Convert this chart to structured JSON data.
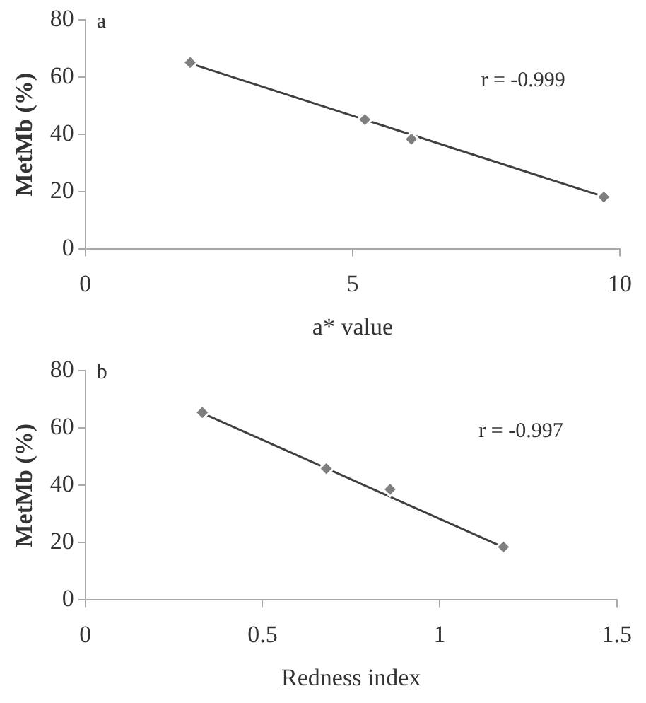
{
  "chart_data": [
    {
      "type": "scatter",
      "xlabel": "a* value",
      "ylabel": "MetMb (%)",
      "annotations": [
        "a",
        "r = -0.999"
      ],
      "xlim": [
        0,
        10
      ],
      "xticks": [
        0,
        5,
        10
      ],
      "ylim": [
        0,
        80
      ],
      "yticks": [
        0,
        20,
        40,
        60,
        80
      ],
      "grid": false,
      "legend": false,
      "series": [
        {
          "color": "#7f7f7f",
          "marker": "diamond",
          "x": [
            1.96,
            5.23,
            6.1,
            9.7
          ],
          "values": [
            65.1,
            45.2,
            38.4,
            18.2
          ]
        },
        {
          "type": "line",
          "color": "#404040",
          "marker": "none",
          "line_style": "solid",
          "x": [
            1.96,
            9.7
          ],
          "values": [
            64.8,
            18.3
          ]
        }
      ]
    },
    {
      "type": "scatter",
      "xlabel": "Redness index",
      "ylabel": "MetMb (%)",
      "annotations": [
        "b",
        "r = -0.997"
      ],
      "xlim": [
        0,
        1.5
      ],
      "xticks": [
        0,
        0.5,
        1,
        1.5
      ],
      "ylim": [
        0,
        80
      ],
      "yticks": [
        0,
        20,
        40,
        60,
        80
      ],
      "grid": false,
      "legend": false,
      "series": [
        {
          "color": "#7f7f7f",
          "marker": "diamond",
          "x": [
            0.33,
            0.68,
            0.86,
            1.18
          ],
          "values": [
            65.4,
            45.8,
            38.6,
            18.5
          ]
        },
        {
          "type": "line",
          "color": "#404040",
          "marker": "none",
          "line_style": "solid",
          "x": [
            0.33,
            1.18
          ],
          "values": [
            65.2,
            18.4
          ]
        }
      ]
    }
  ]
}
